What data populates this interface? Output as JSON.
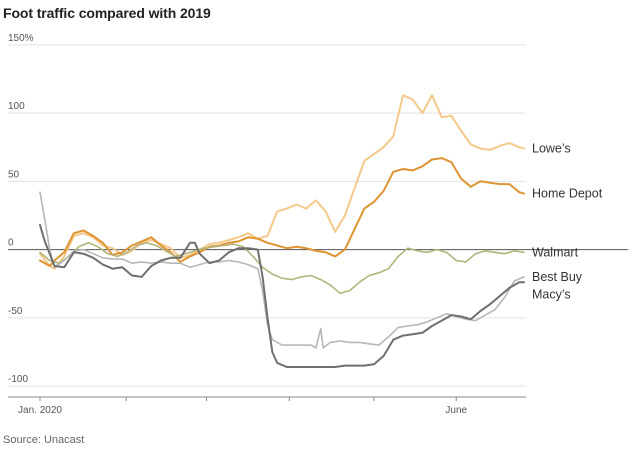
{
  "title": "Foot traffic compared with 2019",
  "source": "Source: Unacast",
  "chart_data": {
    "type": "line",
    "y_ticks": [
      {
        "value": 150,
        "label": "150%"
      },
      {
        "value": 100,
        "label": "100"
      },
      {
        "value": 50,
        "label": "50"
      },
      {
        "value": 0,
        "label": "0"
      },
      {
        "value": -50,
        "label": "-50"
      },
      {
        "value": -100,
        "label": "-100"
      }
    ],
    "ylim": [
      -108,
      155
    ],
    "xlim": [
      0,
      100
    ],
    "x_tick_marks": [
      0,
      17.8,
      34.4,
      51.5,
      69,
      86
    ],
    "x_labels": [
      {
        "pos": 0,
        "label": "Jan. 2020"
      },
      {
        "pos": 86,
        "label": "June"
      }
    ],
    "series": [
      {
        "name": "Lowe's",
        "color": "#f4c98a",
        "width": 2,
        "points": [
          [
            0,
            -3
          ],
          [
            2,
            -12
          ],
          [
            3,
            -14
          ],
          [
            5,
            -5
          ],
          [
            7,
            10
          ],
          [
            9,
            12
          ],
          [
            11,
            9
          ],
          [
            13,
            3
          ],
          [
            15,
            1
          ],
          [
            17,
            -4
          ],
          [
            19,
            -1
          ],
          [
            21,
            5
          ],
          [
            23,
            7
          ],
          [
            25,
            4
          ],
          [
            27,
            1
          ],
          [
            29,
            -6
          ],
          [
            31,
            -4
          ],
          [
            33,
            0
          ],
          [
            35,
            4
          ],
          [
            37,
            5
          ],
          [
            39,
            7
          ],
          [
            41,
            9
          ],
          [
            43,
            12
          ],
          [
            45,
            8
          ],
          [
            47,
            10
          ],
          [
            49,
            28
          ],
          [
            51,
            30
          ],
          [
            53,
            33
          ],
          [
            55,
            30
          ],
          [
            57,
            36
          ],
          [
            59,
            28
          ],
          [
            61,
            13
          ],
          [
            63,
            25
          ],
          [
            65,
            45
          ],
          [
            67,
            65
          ],
          [
            69,
            70
          ],
          [
            71,
            75
          ],
          [
            73,
            83
          ],
          [
            75,
            113
          ],
          [
            77,
            110
          ],
          [
            79,
            100
          ],
          [
            81,
            113
          ],
          [
            83,
            97
          ],
          [
            85,
            98
          ],
          [
            87,
            87
          ],
          [
            89,
            77
          ],
          [
            91,
            74
          ],
          [
            93,
            73
          ],
          [
            95,
            76
          ],
          [
            97,
            78
          ],
          [
            99,
            75
          ],
          [
            100,
            74
          ]
        ]
      },
      {
        "name": "Home Depot",
        "color": "#df9432",
        "width": 2,
        "points": [
          [
            0,
            -8
          ],
          [
            2,
            -12
          ],
          [
            3,
            -8
          ],
          [
            5,
            -2
          ],
          [
            7,
            12
          ],
          [
            9,
            14
          ],
          [
            11,
            10
          ],
          [
            13,
            5
          ],
          [
            15,
            -4
          ],
          [
            17,
            -2
          ],
          [
            19,
            3
          ],
          [
            21,
            6
          ],
          [
            23,
            9
          ],
          [
            25,
            3
          ],
          [
            27,
            -2
          ],
          [
            29,
            -9
          ],
          [
            31,
            -5
          ],
          [
            33,
            -2
          ],
          [
            35,
            2
          ],
          [
            37,
            3
          ],
          [
            39,
            5
          ],
          [
            41,
            6
          ],
          [
            43,
            9
          ],
          [
            45,
            8
          ],
          [
            47,
            5
          ],
          [
            49,
            3
          ],
          [
            51,
            1
          ],
          [
            53,
            2
          ],
          [
            55,
            1
          ],
          [
            57,
            -1
          ],
          [
            59,
            -2
          ],
          [
            61,
            -5
          ],
          [
            63,
            0
          ],
          [
            65,
            15
          ],
          [
            67,
            30
          ],
          [
            69,
            35
          ],
          [
            71,
            43
          ],
          [
            73,
            57
          ],
          [
            75,
            59
          ],
          [
            77,
            58
          ],
          [
            79,
            61
          ],
          [
            81,
            66
          ],
          [
            83,
            67
          ],
          [
            85,
            64
          ],
          [
            87,
            52
          ],
          [
            89,
            46
          ],
          [
            91,
            50
          ],
          [
            93,
            49
          ],
          [
            95,
            48
          ],
          [
            97,
            48
          ],
          [
            99,
            42
          ],
          [
            100,
            41
          ]
        ]
      },
      {
        "name": "Walmart",
        "color": "#b2b57c",
        "width": 1.6,
        "points": [
          [
            0,
            -2
          ],
          [
            2,
            -8
          ],
          [
            4,
            -10
          ],
          [
            6,
            -5
          ],
          [
            8,
            2
          ],
          [
            10,
            5
          ],
          [
            12,
            2
          ],
          [
            14,
            -3
          ],
          [
            16,
            -5
          ],
          [
            18,
            -2
          ],
          [
            20,
            3
          ],
          [
            22,
            5
          ],
          [
            24,
            3
          ],
          [
            26,
            -1
          ],
          [
            28,
            -5
          ],
          [
            30,
            -3
          ],
          [
            32,
            -1
          ],
          [
            34,
            1
          ],
          [
            36,
            2
          ],
          [
            38,
            3
          ],
          [
            40,
            4
          ],
          [
            42,
            2
          ],
          [
            44,
            -5
          ],
          [
            46,
            -13
          ],
          [
            48,
            -18
          ],
          [
            50,
            -21
          ],
          [
            52,
            -22
          ],
          [
            54,
            -20
          ],
          [
            56,
            -19
          ],
          [
            58,
            -22
          ],
          [
            60,
            -26
          ],
          [
            62,
            -32
          ],
          [
            64,
            -30
          ],
          [
            66,
            -24
          ],
          [
            68,
            -19
          ],
          [
            70,
            -17
          ],
          [
            72,
            -14
          ],
          [
            74,
            -5
          ],
          [
            76,
            1
          ],
          [
            78,
            -1
          ],
          [
            80,
            -2
          ],
          [
            82,
            0
          ],
          [
            84,
            -2
          ],
          [
            86,
            -8
          ],
          [
            88,
            -9
          ],
          [
            90,
            -3
          ],
          [
            92,
            -1
          ],
          [
            94,
            -2
          ],
          [
            96,
            -3
          ],
          [
            98,
            -1
          ],
          [
            100,
            -2
          ]
        ]
      },
      {
        "name": "Best Buy",
        "color": "#b7b7b7",
        "width": 1.6,
        "points": [
          [
            0,
            42
          ],
          [
            1,
            22
          ],
          [
            2,
            0
          ],
          [
            3,
            -13
          ],
          [
            5,
            -8
          ],
          [
            7,
            -1
          ],
          [
            9,
            0
          ],
          [
            11,
            -3
          ],
          [
            13,
            -6
          ],
          [
            15,
            -7
          ],
          [
            17,
            -7
          ],
          [
            19,
            -10
          ],
          [
            21,
            -9
          ],
          [
            23,
            -10
          ],
          [
            25,
            -9
          ],
          [
            27,
            -10
          ],
          [
            29,
            -10
          ],
          [
            31,
            -13
          ],
          [
            33,
            -11
          ],
          [
            35,
            -9
          ],
          [
            37,
            -9
          ],
          [
            39,
            -8
          ],
          [
            41,
            -9
          ],
          [
            43,
            -11
          ],
          [
            45,
            -14
          ],
          [
            46,
            -30
          ],
          [
            47,
            -55
          ],
          [
            48,
            -66
          ],
          [
            50,
            -70
          ],
          [
            52,
            -70
          ],
          [
            54,
            -70
          ],
          [
            56,
            -70
          ],
          [
            57,
            -72
          ],
          [
            58,
            -58
          ],
          [
            58.5,
            -72
          ],
          [
            60,
            -68
          ],
          [
            62,
            -67
          ],
          [
            64,
            -68
          ],
          [
            66,
            -68
          ],
          [
            68,
            -69
          ],
          [
            70,
            -70
          ],
          [
            72,
            -64
          ],
          [
            74,
            -57
          ],
          [
            76,
            -56
          ],
          [
            78,
            -55
          ],
          [
            80,
            -53
          ],
          [
            82,
            -50
          ],
          [
            84,
            -47
          ],
          [
            86,
            -49
          ],
          [
            88,
            -51
          ],
          [
            90,
            -52
          ],
          [
            92,
            -48
          ],
          [
            94,
            -44
          ],
          [
            96,
            -35
          ],
          [
            98,
            -23
          ],
          [
            100,
            -20
          ]
        ]
      },
      {
        "name": "Macy's",
        "color": "#6f6f6f",
        "width": 2,
        "points": [
          [
            0,
            18
          ],
          [
            1,
            6
          ],
          [
            2,
            -3
          ],
          [
            3,
            -12
          ],
          [
            5,
            -13
          ],
          [
            7,
            -2
          ],
          [
            9,
            -3
          ],
          [
            11,
            -6
          ],
          [
            13,
            -11
          ],
          [
            15,
            -14
          ],
          [
            17,
            -13
          ],
          [
            19,
            -19
          ],
          [
            21,
            -20
          ],
          [
            23,
            -12
          ],
          [
            25,
            -8
          ],
          [
            27,
            -6
          ],
          [
            29,
            -6
          ],
          [
            31,
            5
          ],
          [
            32,
            5
          ],
          [
            33,
            -3
          ],
          [
            35,
            -10
          ],
          [
            37,
            -8
          ],
          [
            39,
            -2
          ],
          [
            41,
            1
          ],
          [
            43,
            1
          ],
          [
            45,
            0
          ],
          [
            46,
            -20
          ],
          [
            47,
            -50
          ],
          [
            48,
            -75
          ],
          [
            49,
            -83
          ],
          [
            51,
            -86
          ],
          [
            53,
            -86
          ],
          [
            55,
            -86
          ],
          [
            57,
            -86
          ],
          [
            59,
            -86
          ],
          [
            61,
            -86
          ],
          [
            63,
            -85
          ],
          [
            65,
            -85
          ],
          [
            67,
            -85
          ],
          [
            69,
            -84
          ],
          [
            71,
            -78
          ],
          [
            73,
            -66
          ],
          [
            75,
            -63
          ],
          [
            77,
            -62
          ],
          [
            79,
            -61
          ],
          [
            81,
            -56
          ],
          [
            83,
            -52
          ],
          [
            85,
            -48
          ],
          [
            87,
            -49
          ],
          [
            89,
            -51
          ],
          [
            91,
            -45
          ],
          [
            93,
            -40
          ],
          [
            95,
            -34
          ],
          [
            97,
            -28
          ],
          [
            99,
            -24
          ],
          [
            100,
            -24
          ]
        ]
      }
    ],
    "end_labels": [
      {
        "series": "Lowe's",
        "label": "Lowe’s",
        "at_value": 74
      },
      {
        "series": "Home Depot",
        "label": "Home Depot",
        "at_value": 41
      },
      {
        "series": "Walmart",
        "label": "Walmart",
        "at_value": -2
      },
      {
        "series": "Best Buy",
        "label": "Best Buy",
        "at_value": -20
      },
      {
        "series": "Macy's",
        "label": "Macy’s",
        "at_value": -33
      }
    ]
  }
}
